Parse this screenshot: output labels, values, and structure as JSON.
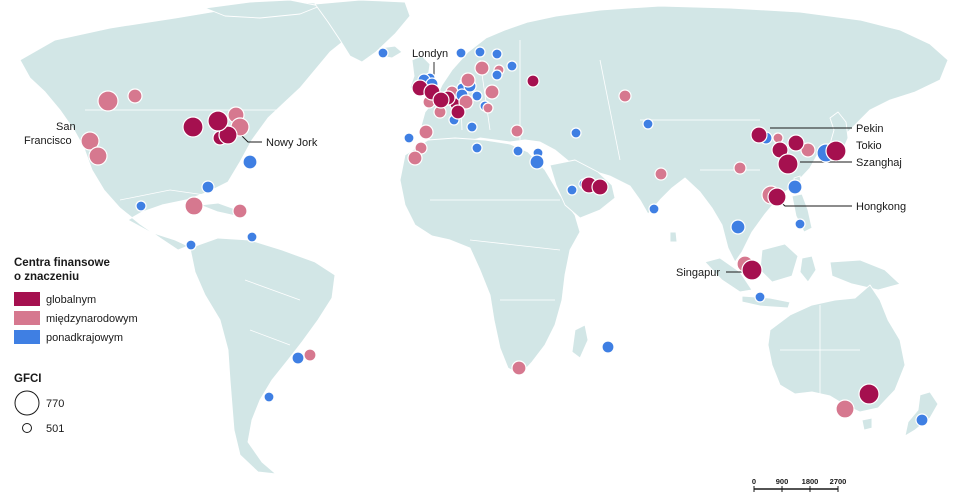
{
  "colors": {
    "global": "#a5104f",
    "international": "#d6788f",
    "transnational": "#3f7fe3",
    "land": "#d2e6e6"
  },
  "labels": {
    "london": "Londyn",
    "san_francisco_1": "San",
    "san_francisco_2": "Francisco",
    "new_york": "Nowy Jork",
    "beijing": "Pekin",
    "tokyo": "Tokio",
    "shanghai": "Szanghaj",
    "hong_kong": "Hongkong",
    "singapore": "Singapur"
  },
  "legend": {
    "title_line1": "Centra finansowe",
    "title_line2": "o znaczeniu",
    "items": [
      {
        "label": "globalnym",
        "color_key": "global"
      },
      {
        "label": "międzynarodowym",
        "color_key": "international"
      },
      {
        "label": "ponadkrajowym",
        "color_key": "transnational"
      }
    ]
  },
  "size_legend": {
    "title": "GFCI",
    "max_label": "770",
    "min_label": "501"
  },
  "scale_bar": {
    "ticks": [
      "0",
      "900",
      "1800",
      "2700"
    ]
  }
}
